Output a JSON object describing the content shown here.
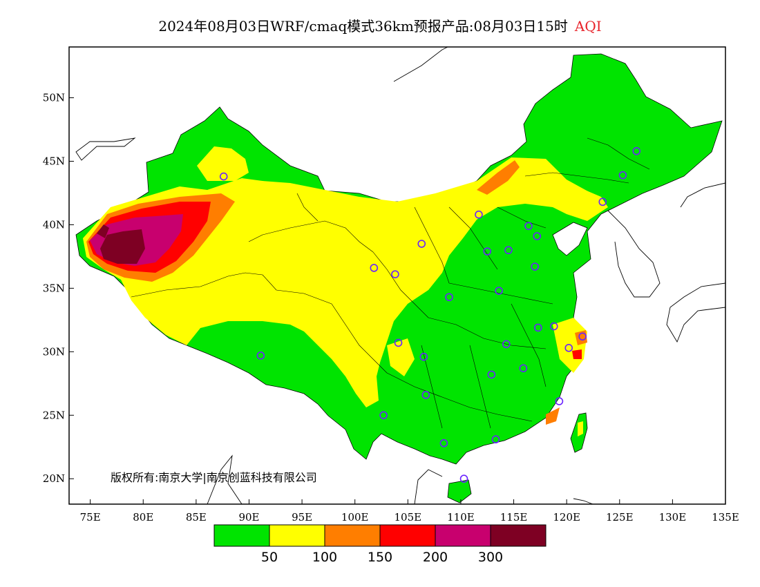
{
  "title": {
    "main": "2024年08月03日WRF/cmaq模式36km预报产品:08月03日15时",
    "variable": "AQI",
    "variable_color": "#e8242b"
  },
  "axes": {
    "lat_labels": [
      "50N",
      "45N",
      "40N",
      "35N",
      "30N",
      "25N",
      "20N"
    ],
    "lat_values": [
      50,
      45,
      40,
      35,
      30,
      25,
      20
    ],
    "lon_labels": [
      "75E",
      "80E",
      "85E",
      "90E",
      "95E",
      "100E",
      "105E",
      "110E",
      "115E",
      "120E",
      "125E",
      "130E",
      "135E"
    ],
    "lon_values": [
      75,
      80,
      85,
      90,
      95,
      100,
      105,
      110,
      115,
      120,
      125,
      130,
      135
    ],
    "lon_range": [
      73,
      135
    ],
    "lat_range": [
      18,
      54
    ]
  },
  "copyright": "版权所有:南京大学|南京创蓝科技有限公司",
  "legend": {
    "colors": [
      "#00e400",
      "#ffff00",
      "#ff7e00",
      "#ff0000",
      "#c8006e",
      "#7e0023"
    ],
    "labels": [
      "50",
      "100",
      "150",
      "200",
      "300"
    ]
  },
  "stations": [
    [
      87.6,
      43.8
    ],
    [
      91.1,
      29.7
    ],
    [
      101.8,
      36.6
    ],
    [
      103.8,
      36.1
    ],
    [
      106.3,
      38.5
    ],
    [
      104.1,
      30.7
    ],
    [
      106.5,
      29.6
    ],
    [
      106.7,
      26.6
    ],
    [
      102.7,
      25.0
    ],
    [
      108.4,
      22.8
    ],
    [
      110.3,
      20.0
    ],
    [
      108.9,
      34.3
    ],
    [
      111.7,
      40.8
    ],
    [
      112.5,
      37.9
    ],
    [
      114.5,
      38.0
    ],
    [
      116.4,
      39.9
    ],
    [
      117.2,
      39.1
    ],
    [
      117.0,
      36.7
    ],
    [
      113.6,
      34.8
    ],
    [
      114.3,
      30.6
    ],
    [
      112.9,
      28.2
    ],
    [
      115.9,
      28.7
    ],
    [
      117.3,
      31.9
    ],
    [
      118.8,
      32.0
    ],
    [
      120.2,
      30.3
    ],
    [
      121.5,
      31.2
    ],
    [
      119.3,
      26.1
    ],
    [
      113.3,
      23.1
    ],
    [
      123.4,
      41.8
    ],
    [
      125.3,
      43.9
    ],
    [
      126.6,
      45.8
    ]
  ]
}
